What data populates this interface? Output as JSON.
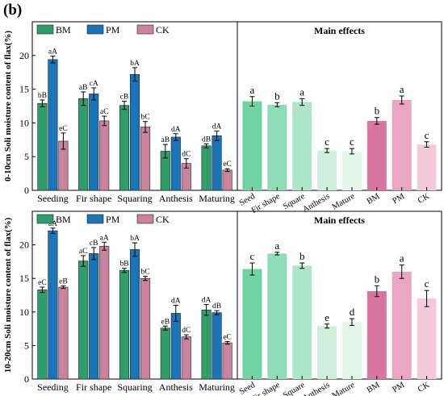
{
  "panel_label": "(b)",
  "colors": {
    "BM": "#2e9e6a",
    "PM": "#1a74b8",
    "CK": "#c9839e",
    "main_seed": "#6fd3a3",
    "main_fir": "#8fddb6",
    "main_square": "#aee6c8",
    "main_anthesis": "#cfeedc",
    "main_mature": "#e4f5ea",
    "main_BM": "#d9769f",
    "main_PM": "#e9a5c2",
    "main_CK": "#f3cadb"
  },
  "chart_data": [
    {
      "type": "bar",
      "ylabel": "0-10cm Soli moisture content of flax(%)",
      "ylim": [
        0,
        25
      ],
      "yticks": [
        0,
        5,
        10,
        15,
        20
      ],
      "legend": [
        "BM",
        "PM",
        "CK"
      ],
      "categories": [
        "Seeding",
        "Fir shape",
        "Squaring",
        "Anthesis",
        "Maturing"
      ],
      "series": [
        {
          "name": "BM",
          "values": [
            12.9,
            13.6,
            12.6,
            5.8,
            6.6
          ],
          "errors": [
            0.5,
            1.0,
            0.6,
            1.0,
            0.3
          ],
          "labels": [
            "bB",
            "aB",
            "cB",
            "aB",
            "dB"
          ]
        },
        {
          "name": "PM",
          "values": [
            19.4,
            14.3,
            17.2,
            7.9,
            8.1
          ],
          "errors": [
            0.5,
            0.9,
            1.0,
            0.5,
            0.7
          ],
          "labels": [
            "aA",
            "cA",
            "bA",
            "dA",
            "dA"
          ]
        },
        {
          "name": "CK",
          "values": [
            7.3,
            10.3,
            9.4,
            4.0,
            3.0
          ],
          "errors": [
            1.2,
            0.7,
            0.8,
            0.7,
            0.2
          ],
          "labels": [
            "eC",
            "aC",
            "bC",
            "dC",
            "eC"
          ]
        }
      ],
      "main_effects": {
        "title": "Main effects",
        "categories": [
          "Seed",
          "Fir shape",
          "Square",
          "Anthesis",
          "Mature",
          "BM",
          "PM",
          "CK"
        ],
        "values": [
          13.2,
          12.7,
          13.1,
          5.9,
          5.8,
          10.3,
          13.4,
          6.8
        ],
        "errors": [
          0.7,
          0.3,
          0.5,
          0.3,
          0.4,
          0.5,
          0.6,
          0.4
        ],
        "labels": [
          "a",
          "b",
          "a",
          "c",
          "c",
          "b",
          "a",
          "c"
        ]
      }
    },
    {
      "type": "bar",
      "ylabel": "10-20cm Soli moisture content of flax(%)",
      "ylim": [
        0,
        25
      ],
      "yticks": [
        0,
        5,
        10,
        15,
        20
      ],
      "legend": [
        "BM",
        "PM",
        "CK"
      ],
      "categories": [
        "Seeding",
        "Fir shape",
        "Squaring",
        "Anthesis",
        "Maturing"
      ],
      "series": [
        {
          "name": "BM",
          "values": [
            13.3,
            17.6,
            16.2,
            7.6,
            10.3
          ],
          "errors": [
            0.4,
            0.8,
            0.3,
            0.3,
            0.8
          ],
          "labels": [
            "eC",
            "aC",
            "bB",
            "eB",
            "dA"
          ]
        },
        {
          "name": "PM",
          "values": [
            22.1,
            18.7,
            19.3,
            9.8,
            9.9
          ],
          "errors": [
            0.4,
            0.9,
            1.0,
            1.2,
            0.3
          ],
          "labels": [
            "aA",
            "cB",
            "bA",
            "dA",
            "dB"
          ]
        },
        {
          "name": "CK",
          "values": [
            13.7,
            19.8,
            15.0,
            6.3,
            5.4
          ],
          "errors": [
            0.2,
            0.6,
            0.3,
            0.3,
            0.2
          ],
          "labels": [
            "eB",
            "aA",
            "bC",
            "dC",
            "eC"
          ]
        }
      ],
      "main_effects": {
        "title": "Main effects",
        "categories": [
          "Seed",
          "Fir shape",
          "Square",
          "Anthesis",
          "Mature",
          "BM",
          "PM",
          "CK"
        ],
        "values": [
          16.4,
          18.7,
          16.9,
          7.9,
          8.5,
          13.1,
          16.0,
          12.0
        ],
        "errors": [
          0.9,
          0.2,
          0.4,
          0.3,
          0.5,
          0.8,
          1.0,
          1.2
        ],
        "labels": [
          "c",
          "a",
          "b",
          "e",
          "d",
          "b",
          "a",
          "c"
        ]
      }
    }
  ]
}
